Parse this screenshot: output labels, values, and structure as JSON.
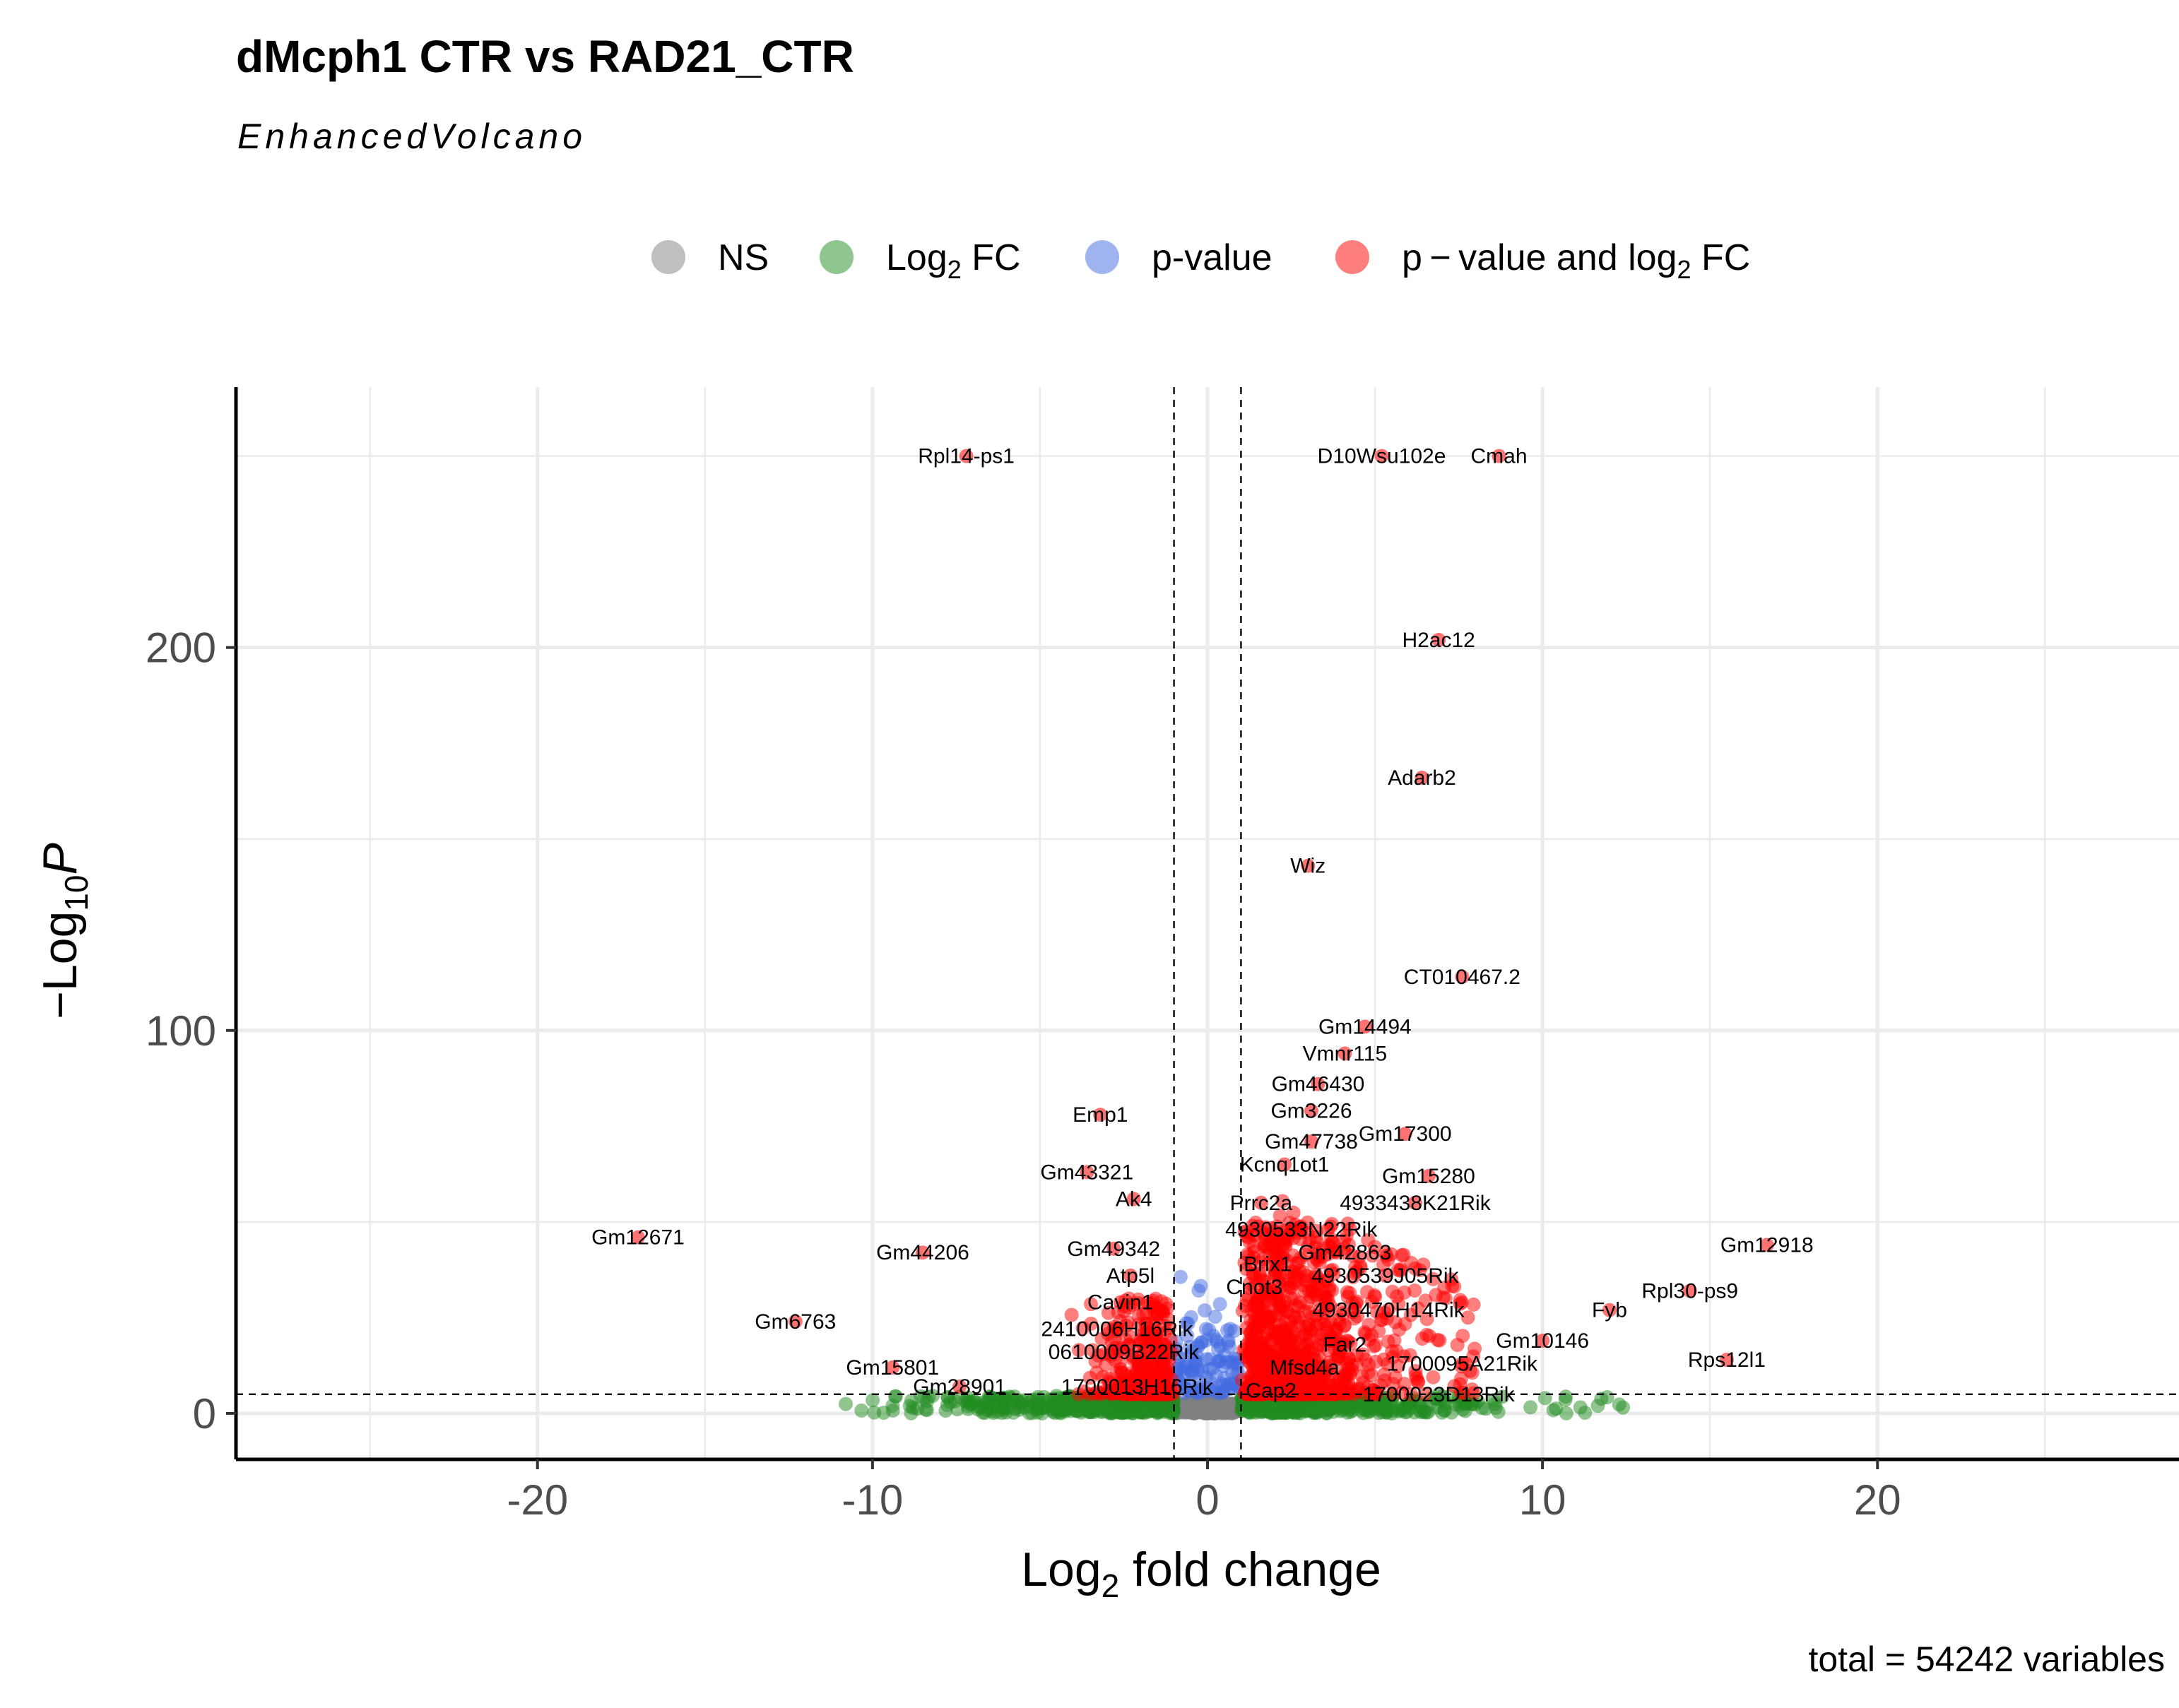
{
  "chart_data": {
    "type": "scatter",
    "title": "dMcph1 CTR vs RAD21_CTR",
    "subtitle": "EnhancedVolcano",
    "caption": "total = 54242 variables",
    "xlabel": "fold change",
    "xlabel_prefix": "Log",
    "xlabel_sub": "2",
    "ylabel": "P",
    "ylabel_prefix": "−Log",
    "ylabel_sub": "10",
    "xlim": [
      -29,
      29
    ],
    "ylim": [
      -12,
      268
    ],
    "x_ticks": [
      -20,
      -10,
      0,
      10,
      20
    ],
    "x_tick_labels": [
      "-20",
      "-10",
      "0",
      "10",
      "20"
    ],
    "y_ticks": [
      0,
      100,
      200
    ],
    "y_tick_labels": [
      "0",
      "100",
      "200"
    ],
    "grid": true,
    "legend_position": "top",
    "cutoffs": {
      "log2fc": [
        -1,
        1
      ],
      "neg_log10_p": 5
    },
    "legend": [
      {
        "key": "ns",
        "color": "#808080",
        "parts": [
          {
            "t": "NS"
          }
        ]
      },
      {
        "key": "fc",
        "color": "#228B22",
        "parts": [
          {
            "t": "Log"
          },
          {
            "t": "2",
            "sub": true
          },
          {
            "t": " FC"
          }
        ]
      },
      {
        "key": "p",
        "color": "#4169E1",
        "parts": [
          {
            "t": "p-value"
          }
        ]
      },
      {
        "key": "both",
        "color": "#FF0000",
        "parts": [
          {
            "t": "p − value and log"
          },
          {
            "t": "2",
            "sub": true
          },
          {
            "t": " FC"
          }
        ]
      }
    ],
    "colors": {
      "ns": "#808080",
      "fc": "#228B22",
      "p": "#4169E1",
      "both": "#FF0000"
    },
    "labeled_genes": [
      {
        "label": "Rpl14-ps1",
        "x": -7.2,
        "y": 250
      },
      {
        "label": "D10Wsu102e",
        "x": 5.2,
        "y": 250
      },
      {
        "label": "Cmah",
        "x": 8.7,
        "y": 250
      },
      {
        "label": "H2ac12",
        "x": 6.9,
        "y": 202
      },
      {
        "label": "Adarb2",
        "x": 6.4,
        "y": 166
      },
      {
        "label": "Wiz",
        "x": 3.0,
        "y": 143
      },
      {
        "label": "CT010467.2",
        "x": 7.6,
        "y": 114
      },
      {
        "label": "Gm14494",
        "x": 4.7,
        "y": 101
      },
      {
        "label": "Vmnr115",
        "x": 4.1,
        "y": 94
      },
      {
        "label": "Gm46430",
        "x": 3.3,
        "y": 86
      },
      {
        "label": "Emp1",
        "x": -3.2,
        "y": 78
      },
      {
        "label": "Gm3226",
        "x": 3.1,
        "y": 79
      },
      {
        "label": "Gm17300",
        "x": 5.9,
        "y": 73
      },
      {
        "label": "Gm47738",
        "x": 3.1,
        "y": 71
      },
      {
        "label": "Kcnq1ot1",
        "x": 2.3,
        "y": 65
      },
      {
        "label": "Gm43321",
        "x": -3.6,
        "y": 63
      },
      {
        "label": "Gm15280",
        "x": 6.6,
        "y": 62
      },
      {
        "label": "Ak4",
        "x": -2.2,
        "y": 56
      },
      {
        "label": "Prrc2a",
        "x": 1.6,
        "y": 55
      },
      {
        "label": "4933438K21Rik",
        "x": 6.2,
        "y": 55
      },
      {
        "label": "4930533N22Rik",
        "x": 2.8,
        "y": 48
      },
      {
        "label": "Gm12671",
        "x": -17.0,
        "y": 46
      },
      {
        "label": "Gm44206",
        "x": -8.5,
        "y": 42
      },
      {
        "label": "Gm49342",
        "x": -2.8,
        "y": 43
      },
      {
        "label": "Gm42863",
        "x": 4.1,
        "y": 42
      },
      {
        "label": "Gm12918",
        "x": 16.7,
        "y": 44
      },
      {
        "label": "Brix1",
        "x": 1.8,
        "y": 39
      },
      {
        "label": "4930539J05Rik",
        "x": 5.3,
        "y": 36
      },
      {
        "label": "Atp5l",
        "x": -2.3,
        "y": 36
      },
      {
        "label": "Cnot3",
        "x": 1.4,
        "y": 33
      },
      {
        "label": "Rpl30-ps9",
        "x": 14.4,
        "y": 32
      },
      {
        "label": "Cavin1",
        "x": -2.6,
        "y": 29
      },
      {
        "label": "4930470H14Rik",
        "x": 5.4,
        "y": 27
      },
      {
        "label": "Fyb",
        "x": 12.0,
        "y": 27
      },
      {
        "label": "Gm6763",
        "x": -12.3,
        "y": 24
      },
      {
        "label": "2410006H16Rik",
        "x": -2.7,
        "y": 22
      },
      {
        "label": "Far2",
        "x": 4.1,
        "y": 18
      },
      {
        "label": "Gm10146",
        "x": 10.0,
        "y": 19
      },
      {
        "label": "0610009B22Rik",
        "x": -2.5,
        "y": 16
      },
      {
        "label": "Gm15801",
        "x": -9.4,
        "y": 12
      },
      {
        "label": "Mfsd4a",
        "x": 2.9,
        "y": 12
      },
      {
        "label": "1700095A21Rik",
        "x": 7.6,
        "y": 13
      },
      {
        "label": "Rps12l1",
        "x": 15.5,
        "y": 14
      },
      {
        "label": "Gm28901",
        "x": -7.4,
        "y": 7
      },
      {
        "label": "1700013H16Rik",
        "x": -2.1,
        "y": 7
      },
      {
        "label": "Cap2",
        "x": 1.9,
        "y": 6
      },
      {
        "label": "1700023D13Rik",
        "x": 6.9,
        "y": 5
      }
    ]
  }
}
